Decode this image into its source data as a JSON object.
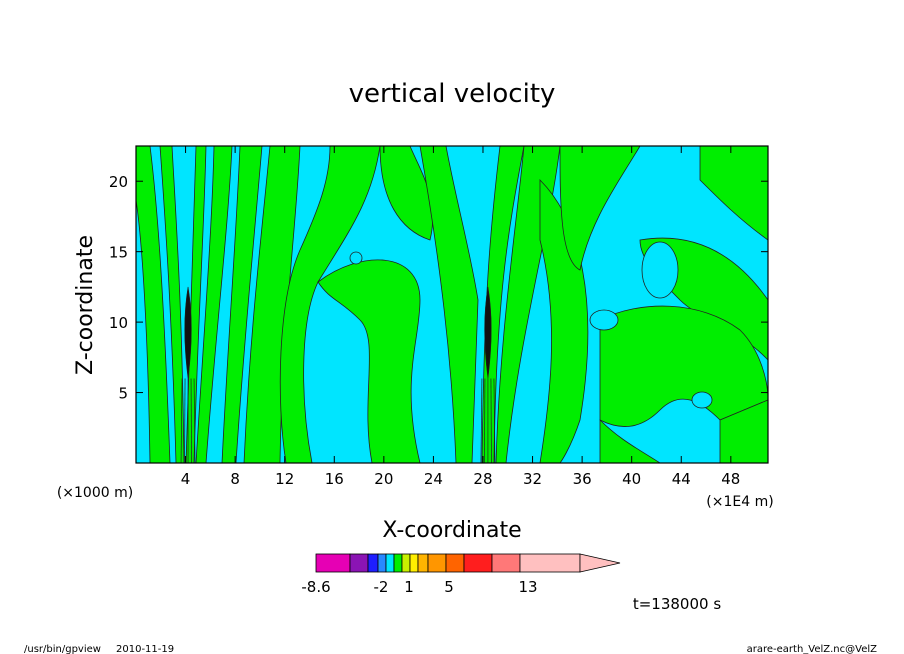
{
  "footer": {
    "left_path": "/usr/bin/gpview",
    "left_date": "2010-11-19",
    "right_source": "arare-earth_VelZ.nc@VelZ"
  },
  "chart_data": {
    "type": "heatmap",
    "title": "vertical velocity",
    "xlabel": "X-coordinate",
    "ylabel": "Z-coordinate",
    "x_units": "(×1E4 m)",
    "y_units": "(×1000 m)",
    "x_ticks": [
      4,
      8,
      12,
      16,
      20,
      24,
      28,
      32,
      36,
      40,
      44,
      48
    ],
    "y_ticks": [
      5,
      10,
      15,
      20
    ],
    "xlim": [
      0,
      51
    ],
    "ylim": [
      0,
      22.5
    ],
    "time_label": "t=138000 s",
    "field_colors": {
      "negative": "#00e5ff",
      "positive": "#00ee00",
      "strong_core": "#111111",
      "contour": "#222222"
    },
    "colorbar": {
      "tick_labels": [
        {
          "value": -8.6,
          "label": "-8.6"
        },
        {
          "value": -2,
          "label": "-2"
        },
        {
          "value": 1,
          "label": "1"
        },
        {
          "value": 5,
          "label": "5"
        },
        {
          "value": 13,
          "label": "13"
        }
      ],
      "colors": [
        "#e600b4",
        "#8b14b4",
        "#1e1eff",
        "#2888ff",
        "#00e5ff",
        "#00ee00",
        "#c8f000",
        "#ffee00",
        "#ffb400",
        "#ff9600",
        "#ff6400",
        "#ff1e1e",
        "#ff7878",
        "#ffc0c0"
      ]
    },
    "updrafts": [
      {
        "x": 4.2,
        "z_min": 0,
        "z_max": 12.5
      },
      {
        "x": 28.4,
        "z_min": 0,
        "z_max": 12.5
      }
    ]
  }
}
